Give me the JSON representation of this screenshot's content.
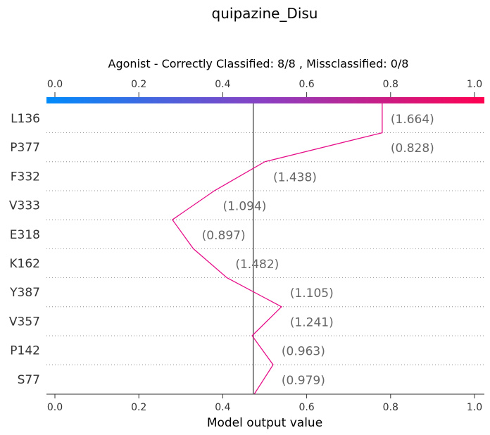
{
  "chart_data": {
    "type": "decision-plot",
    "title": "quipazine_Disu",
    "subtitle": "Agonist - Correctly Classified: 8/8 , Missclassified: 0/8",
    "xlabel": "Model output value",
    "xlim": [
      0.0,
      1.0
    ],
    "xticks": [
      "0.0",
      "0.2",
      "0.4",
      "0.6",
      "0.8",
      "1.0"
    ],
    "xtick_values": [
      0.0,
      0.2,
      0.4,
      0.6,
      0.8,
      1.0
    ],
    "base_value": 0.473,
    "colorbar": {
      "low_color": "#008bfb",
      "high_color": "#ff0051",
      "mid_color": "#8b3fc2"
    },
    "line_color": "#e6108a",
    "grid": "dotted horizontal",
    "features": [
      {
        "name": "L136",
        "value_label": "(1.664)",
        "output": 0.78
      },
      {
        "name": "P377",
        "value_label": "(0.828)",
        "output": 0.5
      },
      {
        "name": "F332",
        "value_label": "(1.438)",
        "output": 0.38
      },
      {
        "name": "V333",
        "value_label": "(1.094)",
        "output": 0.28
      },
      {
        "name": "E318",
        "value_label": "(0.897)",
        "output": 0.33
      },
      {
        "name": "K162",
        "value_label": "(1.482)",
        "output": 0.41
      },
      {
        "name": "Y387",
        "value_label": "(1.105)",
        "output": 0.54
      },
      {
        "name": "V357",
        "value_label": "(1.241)",
        "output": 0.47
      },
      {
        "name": "P142",
        "value_label": "(0.963)",
        "output": 0.52
      },
      {
        "name": "S77",
        "value_label": "(0.979)",
        "output": 0.475
      }
    ]
  }
}
